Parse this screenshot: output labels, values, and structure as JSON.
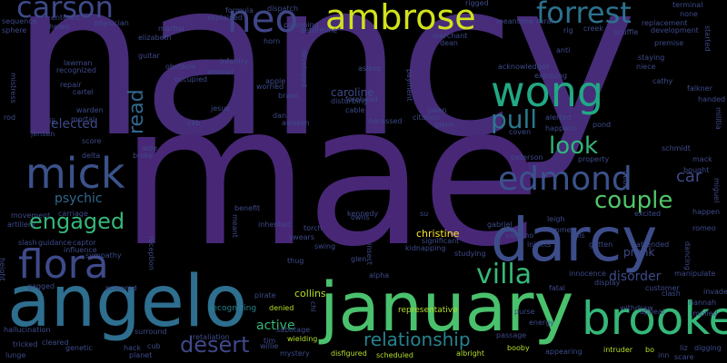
{
  "background": "#000000",
  "palette": {
    "deep_purple": "#482878",
    "indigo": "#3e4a89",
    "blue": "#31688e",
    "teal": "#26828e",
    "green_teal": "#1f9e89",
    "green": "#35b779",
    "light_green": "#6ece58",
    "yellow_green": "#b5de2b",
    "yellow": "#fde725"
  },
  "words": [
    "nancy",
    "mae",
    "angelo",
    "january",
    "darcy",
    "brooke",
    "flora",
    "mick",
    "wong",
    "edmond",
    "ambrose",
    "neo",
    "carson",
    "forrest",
    "villa",
    "pull",
    "look",
    "couple",
    "engaged",
    "desert",
    "read",
    "relationship",
    "car",
    "psychic",
    "elected",
    "active",
    "disorder",
    "caroline",
    "prank",
    "christine",
    "collins",
    "representative",
    "recognizing",
    "denied",
    "sabotage",
    "wielding",
    "mystery",
    "disfigured",
    "scheduled",
    "albright",
    "passage",
    "purse",
    "energy",
    "booby",
    "appearing",
    "intruder",
    "bo",
    "inn",
    "liz",
    "digging",
    "scare",
    "withdraw",
    "appeal",
    "implied",
    "hannah",
    "clash",
    "customer",
    "invade",
    "manipulate",
    "dancing",
    "romeo",
    "happen",
    "miguel",
    "schmidt",
    "mack",
    "bought",
    "handed",
    "militia",
    "falkner",
    "cathy",
    "niece",
    "staying",
    "premise",
    "development",
    "started",
    "terminal",
    "none",
    "replacement",
    "scuffle",
    "creek",
    "rig",
    "rural",
    "meantime",
    "rigged",
    "merchant",
    "dean",
    "payment",
    "gwen",
    "citation",
    "glenn",
    "harassed",
    "coven",
    "cable",
    "forehead",
    "disturbing",
    "dan",
    "awaken",
    "jesus",
    "cab",
    "aide",
    "broke",
    "delta",
    "score",
    "jensen",
    "iii",
    "mortal",
    "warden",
    "cartel",
    "repair",
    "lawman",
    "recognized",
    "helen",
    "sphere",
    "sequence",
    "entered",
    "mistress",
    "rod",
    "physician",
    "martial",
    "elizabeth",
    "guitar",
    "obstacle",
    "infantry",
    "occupied",
    "eternal",
    "formula",
    "dispatch",
    "explained",
    "horn",
    "poisoning",
    "determine",
    "developed",
    "apple",
    "worried",
    "asleep",
    "owns",
    "brawl",
    "artillery",
    "movement",
    "carriage",
    "slash",
    "guidance",
    "captor",
    "influence",
    "height",
    "sympathy",
    "gagged",
    "powered",
    "hallucination",
    "tricked",
    "lunge",
    "cleared",
    "genetic",
    "hack",
    "cub",
    "planet",
    "retaliation",
    "surround",
    "tim",
    "willie",
    "reception",
    "benefit",
    "inherited",
    "torch",
    "swears",
    "swing",
    "thug",
    "glen",
    "insect",
    "alpha",
    "kennedy",
    "su",
    "gabriel",
    "volcano",
    "injects",
    "leigh",
    "hammer",
    "luis",
    "gotten",
    "attended",
    "excited",
    "fatal",
    "display",
    "innocence",
    "pirate",
    "chi",
    "studying",
    "significant",
    "kidnapping",
    "property",
    "tibbs",
    "alerted",
    "pond",
    "happens",
    "acknowledges",
    "exposing",
    "anti",
    "peterson",
    "meant"
  ]
}
